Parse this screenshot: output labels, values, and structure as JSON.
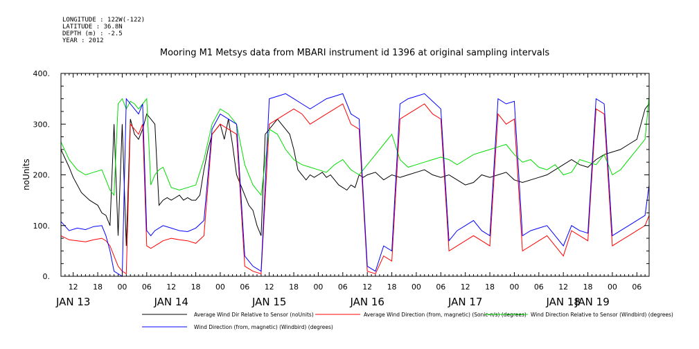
{
  "header": {
    "longitude": "LONGITUDE : 122W(-122)",
    "latitude": "LATITUDE : 36.8N",
    "depth": "DEPTH (m) : -2.5",
    "year": "YEAR : 2012"
  },
  "chart_data": {
    "type": "line",
    "title": "Mooring M1 Metsys data from MBARI instrument id 1396 at original sampling intervals",
    "ylabel": "noUnits",
    "xlabel": "",
    "ylim": [
      0,
      400
    ],
    "xlim": [
      9,
      153
    ],
    "y_ticks": [
      0,
      100,
      200,
      300,
      400
    ],
    "y_tick_labels": [
      "0.",
      "100.",
      "200.",
      "300.",
      "400."
    ],
    "x_hour_ticks": [
      {
        "x": 12,
        "label": "12"
      },
      {
        "x": 18,
        "label": "18"
      },
      {
        "x": 24,
        "label": "00"
      },
      {
        "x": 30,
        "label": "06"
      },
      {
        "x": 36,
        "label": "12"
      },
      {
        "x": 42,
        "label": "18"
      },
      {
        "x": 48,
        "label": "00"
      },
      {
        "x": 54,
        "label": "06"
      },
      {
        "x": 60,
        "label": "12"
      },
      {
        "x": 66,
        "label": "18"
      },
      {
        "x": 72,
        "label": "00"
      },
      {
        "x": 78,
        "label": "06"
      },
      {
        "x": 84,
        "label": "12"
      },
      {
        "x": 90,
        "label": "18"
      },
      {
        "x": 96,
        "label": "00"
      },
      {
        "x": 102,
        "label": "06"
      },
      {
        "x": 108,
        "label": "12"
      },
      {
        "x": 114,
        "label": "18"
      },
      {
        "x": 120,
        "label": "00"
      },
      {
        "x": 126,
        "label": "06"
      },
      {
        "x": 132,
        "label": "12"
      },
      {
        "x": 138,
        "label": "18"
      },
      {
        "x": 144,
        "label": "00"
      },
      {
        "x": 150,
        "label": "06"
      }
    ],
    "day_labels": [
      {
        "x": 12,
        "label": "JAN 13"
      },
      {
        "x": 36,
        "label": "JAN 14"
      },
      {
        "x": 60,
        "label": "JAN 15"
      },
      {
        "x": 84,
        "label": "JAN 16"
      },
      {
        "x": 108,
        "label": "JAN 17"
      },
      {
        "x": 132,
        "label": "JAN 18"
      },
      {
        "x": 156,
        "label": "JAN 19"
      }
    ],
    "series": [
      {
        "name": "Average Wind Dir Relative to Sensor (noUnits)",
        "color": "#000000",
        "x": [
          9,
          11,
          12,
          14,
          16,
          17,
          18,
          19,
          20,
          21,
          22,
          23,
          24,
          25,
          26,
          27,
          28,
          29,
          30,
          31,
          32,
          33,
          34,
          35,
          36,
          37,
          38,
          39,
          40,
          41,
          42,
          43,
          44,
          45,
          46,
          47,
          48,
          49,
          50,
          51,
          52,
          53,
          54,
          55,
          56,
          57,
          58,
          59,
          60,
          61,
          62,
          63,
          64,
          65,
          66,
          67,
          68,
          69,
          70,
          71,
          72,
          73,
          74,
          75,
          76,
          77,
          78,
          79,
          80,
          81,
          82,
          83,
          84,
          86,
          88,
          90,
          92,
          94,
          96,
          98,
          100,
          102,
          104,
          106,
          108,
          110,
          112,
          114,
          116,
          118,
          120,
          122,
          124,
          126,
          128,
          130,
          132,
          134,
          136,
          138,
          140,
          142,
          144,
          146,
          148,
          150,
          152,
          153
        ],
        "values": [
          250,
          215,
          195,
          165,
          150,
          145,
          140,
          125,
          120,
          100,
          300,
          80,
          300,
          60,
          310,
          280,
          270,
          290,
          320,
          310,
          300,
          140,
          150,
          155,
          150,
          155,
          160,
          150,
          155,
          150,
          150,
          160,
          210,
          250,
          280,
          290,
          300,
          270,
          310,
          260,
          200,
          180,
          160,
          140,
          130,
          100,
          80,
          280,
          290,
          300,
          310,
          300,
          290,
          280,
          250,
          210,
          200,
          190,
          200,
          195,
          200,
          205,
          195,
          200,
          190,
          180,
          175,
          170,
          180,
          175,
          200,
          195,
          200,
          205,
          190,
          200,
          195,
          200,
          205,
          210,
          200,
          195,
          200,
          190,
          180,
          185,
          200,
          195,
          200,
          205,
          190,
          185,
          190,
          195,
          200,
          210,
          220,
          230,
          220,
          215,
          230,
          240,
          245,
          250,
          260,
          270,
          330,
          340
        ]
      },
      {
        "name": "Average Wind Direction (from, magnetic) (Sonic-n/s) (degrees)",
        "color": "#ff0000",
        "x": [
          9,
          11,
          13,
          15,
          17,
          19,
          20,
          21,
          22,
          23,
          24,
          25,
          26,
          27,
          28,
          29,
          30,
          31,
          32,
          33,
          34,
          36,
          38,
          40,
          42,
          44,
          46,
          48,
          50,
          52,
          54,
          56,
          58,
          60,
          62,
          64,
          66,
          68,
          70,
          72,
          74,
          76,
          78,
          80,
          82,
          84,
          86,
          88,
          90,
          92,
          94,
          96,
          98,
          100,
          102,
          104,
          106,
          108,
          110,
          112,
          114,
          116,
          118,
          120,
          122,
          124,
          126,
          128,
          130,
          132,
          134,
          136,
          138,
          140,
          142,
          144,
          146,
          148,
          150,
          152,
          153
        ],
        "values": [
          80,
          72,
          70,
          68,
          72,
          75,
          70,
          60,
          40,
          20,
          10,
          5,
          300,
          290,
          280,
          300,
          60,
          55,
          60,
          65,
          70,
          75,
          72,
          70,
          65,
          80,
          280,
          300,
          290,
          280,
          20,
          10,
          5,
          300,
          310,
          320,
          330,
          320,
          300,
          310,
          320,
          330,
          340,
          300,
          290,
          10,
          5,
          40,
          30,
          310,
          320,
          330,
          340,
          320,
          310,
          50,
          60,
          70,
          80,
          70,
          60,
          320,
          300,
          310,
          50,
          60,
          70,
          80,
          60,
          40,
          90,
          80,
          70,
          330,
          320,
          60,
          70,
          80,
          90,
          100,
          120
        ]
      },
      {
        "name": "Wind Direction Relative to Sensor (Windbird) (degrees)",
        "color": "#00dd00",
        "x": [
          9,
          11,
          13,
          15,
          17,
          19,
          20,
          21,
          22,
          23,
          24,
          25,
          26,
          27,
          28,
          29,
          30,
          31,
          32,
          33,
          34,
          36,
          38,
          40,
          42,
          44,
          46,
          48,
          50,
          52,
          54,
          56,
          58,
          60,
          62,
          64,
          66,
          68,
          70,
          72,
          74,
          76,
          78,
          80,
          82,
          84,
          86,
          88,
          90,
          92,
          94,
          96,
          98,
          100,
          102,
          104,
          106,
          108,
          110,
          112,
          114,
          116,
          118,
          120,
          122,
          124,
          126,
          128,
          130,
          132,
          134,
          136,
          138,
          140,
          142,
          144,
          146,
          148,
          150,
          152,
          153
        ],
        "values": [
          265,
          230,
          210,
          200,
          205,
          210,
          190,
          170,
          160,
          340,
          350,
          330,
          345,
          340,
          330,
          340,
          350,
          180,
          200,
          210,
          215,
          175,
          170,
          175,
          180,
          230,
          300,
          330,
          320,
          300,
          220,
          180,
          160,
          290,
          280,
          250,
          230,
          220,
          215,
          210,
          205,
          220,
          230,
          210,
          200,
          220,
          240,
          260,
          280,
          230,
          215,
          220,
          225,
          230,
          235,
          230,
          220,
          230,
          240,
          245,
          250,
          255,
          260,
          240,
          225,
          230,
          215,
          210,
          220,
          200,
          205,
          230,
          225,
          220,
          240,
          200,
          210,
          230,
          250,
          270,
          355
        ]
      },
      {
        "name": "Wind Direction (from, magnetic) (Windbird) (degrees)",
        "color": "#0000ff",
        "x": [
          9,
          11,
          13,
          15,
          17,
          19,
          20,
          21,
          22,
          23,
          24,
          25,
          26,
          27,
          28,
          29,
          30,
          31,
          32,
          33,
          34,
          36,
          38,
          40,
          42,
          44,
          46,
          48,
          50,
          52,
          54,
          56,
          58,
          60,
          62,
          64,
          66,
          68,
          70,
          72,
          74,
          76,
          78,
          80,
          82,
          84,
          86,
          88,
          90,
          92,
          94,
          96,
          98,
          100,
          102,
          104,
          106,
          108,
          110,
          112,
          114,
          116,
          118,
          120,
          122,
          124,
          126,
          128,
          130,
          132,
          134,
          136,
          138,
          140,
          142,
          144,
          146,
          148,
          150,
          152,
          153
        ],
        "values": [
          108,
          90,
          95,
          92,
          98,
          100,
          80,
          50,
          10,
          5,
          0,
          350,
          340,
          330,
          320,
          340,
          90,
          80,
          90,
          95,
          100,
          95,
          90,
          88,
          95,
          110,
          290,
          320,
          310,
          300,
          40,
          20,
          10,
          350,
          355,
          360,
          350,
          340,
          330,
          340,
          350,
          355,
          360,
          320,
          310,
          20,
          10,
          60,
          50,
          340,
          350,
          355,
          360,
          345,
          330,
          70,
          90,
          100,
          110,
          90,
          80,
          350,
          340,
          345,
          80,
          90,
          95,
          100,
          80,
          60,
          100,
          90,
          85,
          350,
          340,
          80,
          90,
          100,
          110,
          120,
          180
        ]
      }
    ],
    "legend_placement": "bottom",
    "grid": false
  }
}
